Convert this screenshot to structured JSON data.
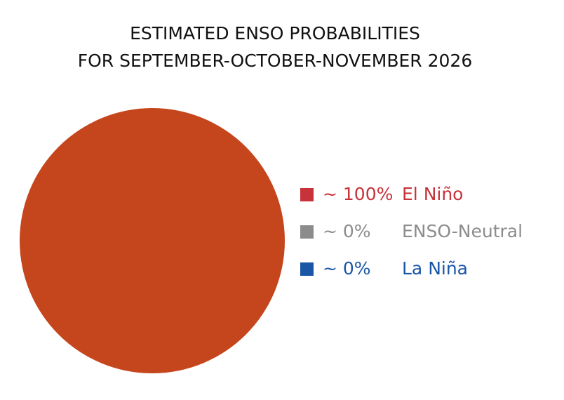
{
  "chart_data": {
    "type": "pie",
    "title": [
      "ESTIMATED ENSO PROBABILITIES",
      "FOR SEPTEMBER-OCTOBER-NOVEMBER 2026"
    ],
    "categories": [
      "El Niño",
      "ENSO-Neutral",
      "La Niña"
    ],
    "values": [
      100,
      0,
      0
    ],
    "value_labels": [
      "~ 100%",
      "~ 0%",
      "~ 0%"
    ],
    "colors": [
      "#c5461d",
      "#9b9b9b",
      "#1a56a6"
    ],
    "legend_colors": [
      "#c8323a",
      "#8c8c8c",
      "#1a56a6"
    ]
  }
}
